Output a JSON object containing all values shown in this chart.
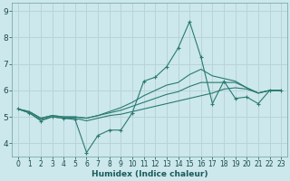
{
  "xlabel": "Humidex (Indice chaleur)",
  "background_color": "#cce8ec",
  "grid_color": "#b8d4d8",
  "line_color": "#2a7a70",
  "xlim": [
    -0.5,
    23.5
  ],
  "ylim": [
    3.5,
    9.3
  ],
  "xticks": [
    0,
    1,
    2,
    3,
    4,
    5,
    6,
    7,
    8,
    9,
    10,
    11,
    12,
    13,
    14,
    15,
    16,
    17,
    18,
    19,
    20,
    21,
    22,
    23
  ],
  "yticks": [
    4,
    5,
    6,
    7,
    8,
    9
  ],
  "lines": [
    {
      "x": [
        0,
        1,
        2,
        3,
        4,
        5,
        6,
        7,
        8,
        9,
        10,
        11,
        12,
        13,
        14,
        15,
        16,
        17,
        18,
        19,
        20,
        21,
        22,
        23
      ],
      "y": [
        5.3,
        5.15,
        4.85,
        5.0,
        4.95,
        4.9,
        3.65,
        4.3,
        4.5,
        4.5,
        5.15,
        6.35,
        6.5,
        6.9,
        7.6,
        8.6,
        7.25,
        5.5,
        6.35,
        5.7,
        5.75,
        5.5,
        6.0,
        6.0
      ],
      "markers": true
    },
    {
      "x": [
        0,
        1,
        2,
        3,
        4,
        5,
        6,
        7,
        8,
        9,
        10,
        11,
        12,
        13,
        14,
        15,
        16,
        17,
        18,
        19,
        20,
        21,
        22,
        23
      ],
      "y": [
        5.3,
        5.15,
        4.9,
        5.0,
        4.95,
        4.95,
        4.85,
        4.95,
        5.05,
        5.1,
        5.2,
        5.3,
        5.4,
        5.5,
        5.6,
        5.7,
        5.8,
        5.9,
        6.05,
        6.1,
        6.05,
        5.9,
        6.0,
        6.0
      ],
      "markers": false
    },
    {
      "x": [
        0,
        1,
        2,
        3,
        4,
        5,
        6,
        7,
        8,
        9,
        10,
        11,
        12,
        13,
        14,
        15,
        16,
        17,
        18,
        19,
        20,
        21,
        22,
        23
      ],
      "y": [
        5.3,
        5.2,
        4.95,
        5.05,
        5.0,
        5.0,
        4.95,
        5.05,
        5.15,
        5.25,
        5.4,
        5.55,
        5.7,
        5.85,
        5.95,
        6.15,
        6.3,
        6.3,
        6.3,
        6.3,
        6.1,
        5.9,
        6.0,
        6.0
      ],
      "markers": false
    },
    {
      "x": [
        0,
        1,
        2,
        3,
        4,
        5,
        6,
        7,
        8,
        9,
        10,
        11,
        12,
        13,
        14,
        15,
        16,
        17,
        18,
        19,
        20,
        21,
        22,
        23
      ],
      "y": [
        5.3,
        5.2,
        4.95,
        5.05,
        5.0,
        5.0,
        4.95,
        5.05,
        5.2,
        5.35,
        5.55,
        5.8,
        6.0,
        6.2,
        6.3,
        6.6,
        6.8,
        6.55,
        6.45,
        6.35,
        6.1,
        5.9,
        6.0,
        6.0
      ],
      "markers": false
    }
  ]
}
